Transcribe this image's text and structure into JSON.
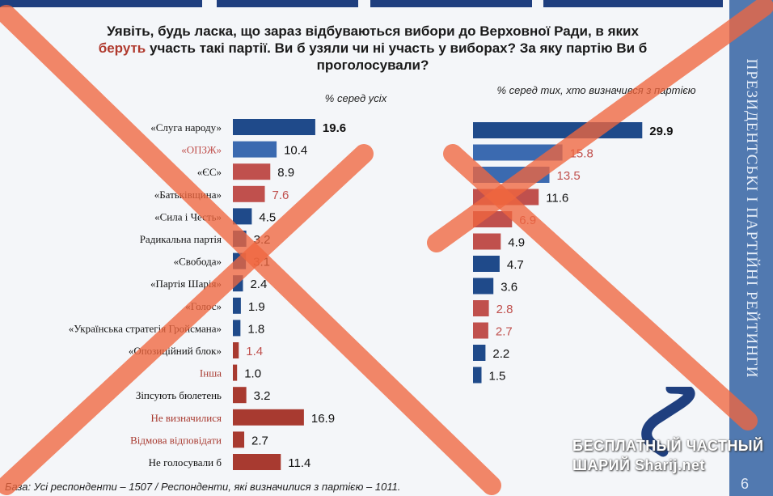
{
  "question": {
    "line1": "Уявіть, будь ласка, що зараз відбуваються вибори до Верховної Ради, в яких",
    "line2_red": "беруть",
    "line2_rest": " участь такі партії. Ви б узяли чи ні участь у виборах? За яку партію Ви б",
    "line3": "проголосували?"
  },
  "sidebar": {
    "title": "ПРЕЗИДЕНТСЬКІ І ПАРТІЙНІ РЕЙТИНГИ",
    "page_number": "6"
  },
  "footer": "База: Усі респонденти – 1507 / Респонденти, які визначилися з партією – 1011.",
  "watermark": {
    "line1": "БЕСПЛАТНЫЙ ЧАСТНЫЙ",
    "line2": "ШАРИЙ",
    "line2_site": "Sharij.net"
  },
  "colors": {
    "blue": "#1f4a8a",
    "blue_light": "#3b6ab0",
    "red": "#a83a30",
    "red_light": "#c0504d",
    "cross": "#f0673f"
  },
  "chart_data": [
    {
      "type": "bar",
      "orientation": "horizontal",
      "title": "% серед усіх",
      "categories": [
        "«Слуга народу»",
        "«ОПЗЖ»",
        "«ЄС»",
        "«Батьківщина»",
        "«Сила і Честь»",
        "Радикальна партія",
        "«Свобода»",
        "«Партія Шарія»",
        "«Голос»",
        "«Українська стратегія Гройсмана»",
        "«Опозиційний блок»",
        "Інша",
        "Зіпсують бюлетень",
        "Не визначилися",
        "Відмова відповідати",
        "Не голосували б"
      ],
      "values": [
        19.6,
        10.4,
        8.9,
        7.6,
        4.5,
        3.2,
        3.1,
        2.4,
        1.9,
        1.8,
        1.4,
        1.0,
        3.2,
        16.9,
        2.7,
        11.4
      ],
      "labels": [
        "19.6",
        "10.4",
        "8.9",
        "7.6",
        "4.5",
        "3.2",
        "3.1",
        "2.4",
        "1.9",
        "1.8",
        "1.4",
        "1.0",
        "3.2",
        "16.9",
        "2.7",
        "11.4"
      ],
      "bar_colors": [
        "#1f4a8a",
        "#3b6ab0",
        "#c0504d",
        "#c0504d",
        "#1f4a8a",
        "#1f4a8a",
        "#1f4a8a",
        "#1f4a8a",
        "#1f4a8a",
        "#1f4a8a",
        "#a83a30",
        "#a83a30",
        "#a83a30",
        "#a83a30",
        "#a83a30",
        "#a83a30"
      ],
      "label_colors": [
        "#111111",
        "#111111",
        "#111111",
        "#c0504d",
        "#111111",
        "#111111",
        "#111111",
        "#111111",
        "#111111",
        "#111111",
        "#c0504d",
        "#111111",
        "#111111",
        "#111111",
        "#111111",
        "#111111"
      ],
      "category_colors": [
        "#111111",
        "#c0504d",
        "#111111",
        "#111111",
        "#111111",
        "#111111",
        "#111111",
        "#111111",
        "#111111",
        "#111111",
        "#111111",
        "#a83a30",
        "#111111",
        "#a83a30",
        "#a83a30",
        "#111111"
      ],
      "bold": [
        true,
        false,
        false,
        false,
        false,
        false,
        false,
        false,
        false,
        false,
        false,
        false,
        false,
        false,
        false,
        false
      ]
    },
    {
      "type": "bar",
      "orientation": "horizontal",
      "title": "% серед тих, хто визначився з партією",
      "categories": [
        "«Слуга народу»",
        "«ОПЗЖ»",
        "«ЄС»",
        "«Батьківщина»",
        "«Сила і Честь»",
        "Радикальна партія",
        "«Свобода»",
        "«Партія Шарія»",
        "«Голос»",
        "«Українська стратегія Гройсмана»",
        "«Опозиційний блок»",
        "Інша"
      ],
      "values": [
        29.9,
        15.8,
        13.5,
        11.6,
        6.9,
        4.9,
        4.7,
        3.6,
        2.8,
        2.7,
        2.2,
        1.5
      ],
      "labels": [
        "29.9",
        "15.8",
        "13.5",
        "11.6",
        "6.9",
        "4.9",
        "4.7",
        "3.6",
        "2.8",
        "2.7",
        "2.2",
        "1.5"
      ],
      "bar_colors": [
        "#1f4a8a",
        "#3b6ab0",
        "#3b6ab0",
        "#c0504d",
        "#c0504d",
        "#c0504d",
        "#1f4a8a",
        "#1f4a8a",
        "#c0504d",
        "#c0504d",
        "#1f4a8a",
        "#1f4a8a"
      ],
      "label_colors": [
        "#111111",
        "#c0504d",
        "#c0504d",
        "#111111",
        "#c0504d",
        "#111111",
        "#111111",
        "#111111",
        "#c0504d",
        "#c0504d",
        "#111111",
        "#111111"
      ],
      "bold": [
        true,
        false,
        false,
        false,
        false,
        false,
        false,
        false,
        false,
        false,
        false,
        false
      ]
    }
  ]
}
